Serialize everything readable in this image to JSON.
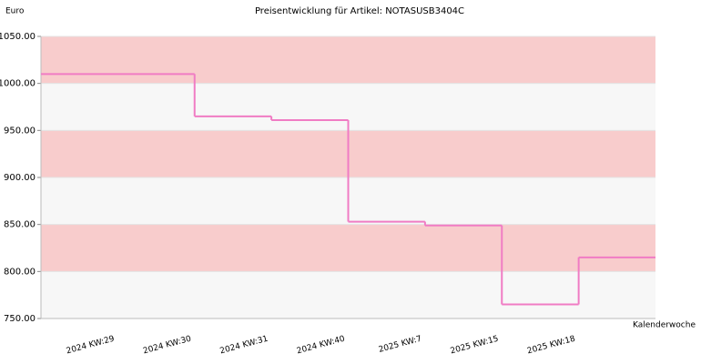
{
  "chart_data": {
    "type": "step",
    "title": "Preisentwicklung für Artikel: NOTASUSB3404C",
    "y_label": "Euro",
    "x_label": "Kalenderwoche",
    "categories": [
      "2024 KW:29",
      "2024 KW:30",
      "2024 KW:31",
      "2024 KW:40",
      "2025 KW:7",
      "2025 KW:15",
      "2025 KW:18"
    ],
    "values": [
      1010,
      965,
      961,
      853,
      849,
      765,
      815
    ],
    "color": "#f07cc4",
    "ylim": [
      750,
      1050
    ],
    "yticks": [
      {
        "value": 750,
        "label": "750.00"
      },
      {
        "value": 800,
        "label": "800.00"
      },
      {
        "value": 850,
        "label": "850.00"
      },
      {
        "value": 900,
        "label": "900.00"
      },
      {
        "value": 950,
        "label": "950.00"
      },
      {
        "value": 1000,
        "label": "1000.00"
      },
      {
        "value": 1050,
        "label": "1050.00"
      }
    ],
    "band_colors": [
      "#f7f7f7",
      "#f8cccc"
    ]
  }
}
